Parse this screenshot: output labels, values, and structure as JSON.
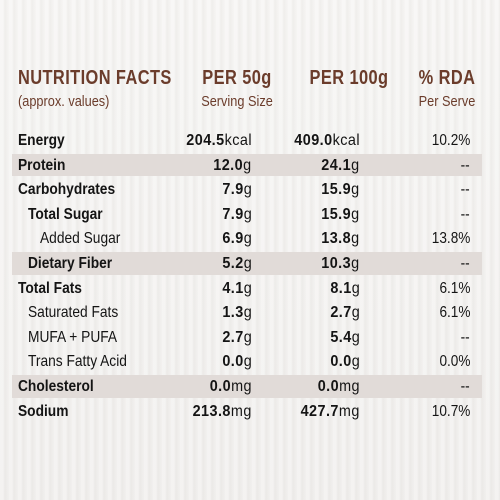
{
  "header": {
    "title": "NUTRITION FACTS",
    "subtitle": "(approx. values)",
    "col_50_main": "PER 50g",
    "col_50_sub": "Serving Size",
    "col_100_main": "PER 100g",
    "col_rda_main": "% RDA",
    "col_rda_sub": "Per Serve"
  },
  "rows": [
    {
      "name": "Energy",
      "v50": "204.5",
      "u50": "kcal",
      "v100": "409.0",
      "u100": "kcal",
      "rda": "10.2%"
    },
    {
      "name": "Protein",
      "v50": "12.0",
      "u50": "g",
      "v100": "24.1",
      "u100": "g",
      "rda": "--"
    },
    {
      "name": "Carbohydrates",
      "v50": "7.9",
      "u50": "g",
      "v100": "15.9",
      "u100": "g",
      "rda": "--"
    },
    {
      "name": "Total Sugar",
      "v50": "7.9",
      "u50": "g",
      "v100": "15.9",
      "u100": "g",
      "rda": "--"
    },
    {
      "name": "Added Sugar",
      "v50": "6.9",
      "u50": "g",
      "v100": "13.8",
      "u100": "g",
      "rda": "13.8%"
    },
    {
      "name": "Dietary Fiber",
      "v50": "5.2",
      "u50": "g",
      "v100": "10.3",
      "u100": "g",
      "rda": "--"
    },
    {
      "name": "Total Fats",
      "v50": "4.1",
      "u50": "g",
      "v100": "8.1",
      "u100": "g",
      "rda": "6.1%"
    },
    {
      "name": "Saturated Fats",
      "v50": "1.3",
      "u50": "g",
      "v100": "2.7",
      "u100": "g",
      "rda": "6.1%"
    },
    {
      "name": "MUFA + PUFA",
      "v50": "2.7",
      "u50": "g",
      "v100": "5.4",
      "u100": "g",
      "rda": "--"
    },
    {
      "name": "Trans Fatty Acid",
      "v50": "0.0",
      "u50": "g",
      "v100": "0.0",
      "u100": "g",
      "rda": "0.0%"
    },
    {
      "name": "Cholesterol",
      "v50": "0.0",
      "u50": "mg",
      "v100": "0.0",
      "u100": "mg",
      "rda": "--"
    },
    {
      "name": "Sodium",
      "v50": "213.8",
      "u50": "mg",
      "v100": "427.7",
      "u100": "mg",
      "rda": "10.7%"
    }
  ]
}
